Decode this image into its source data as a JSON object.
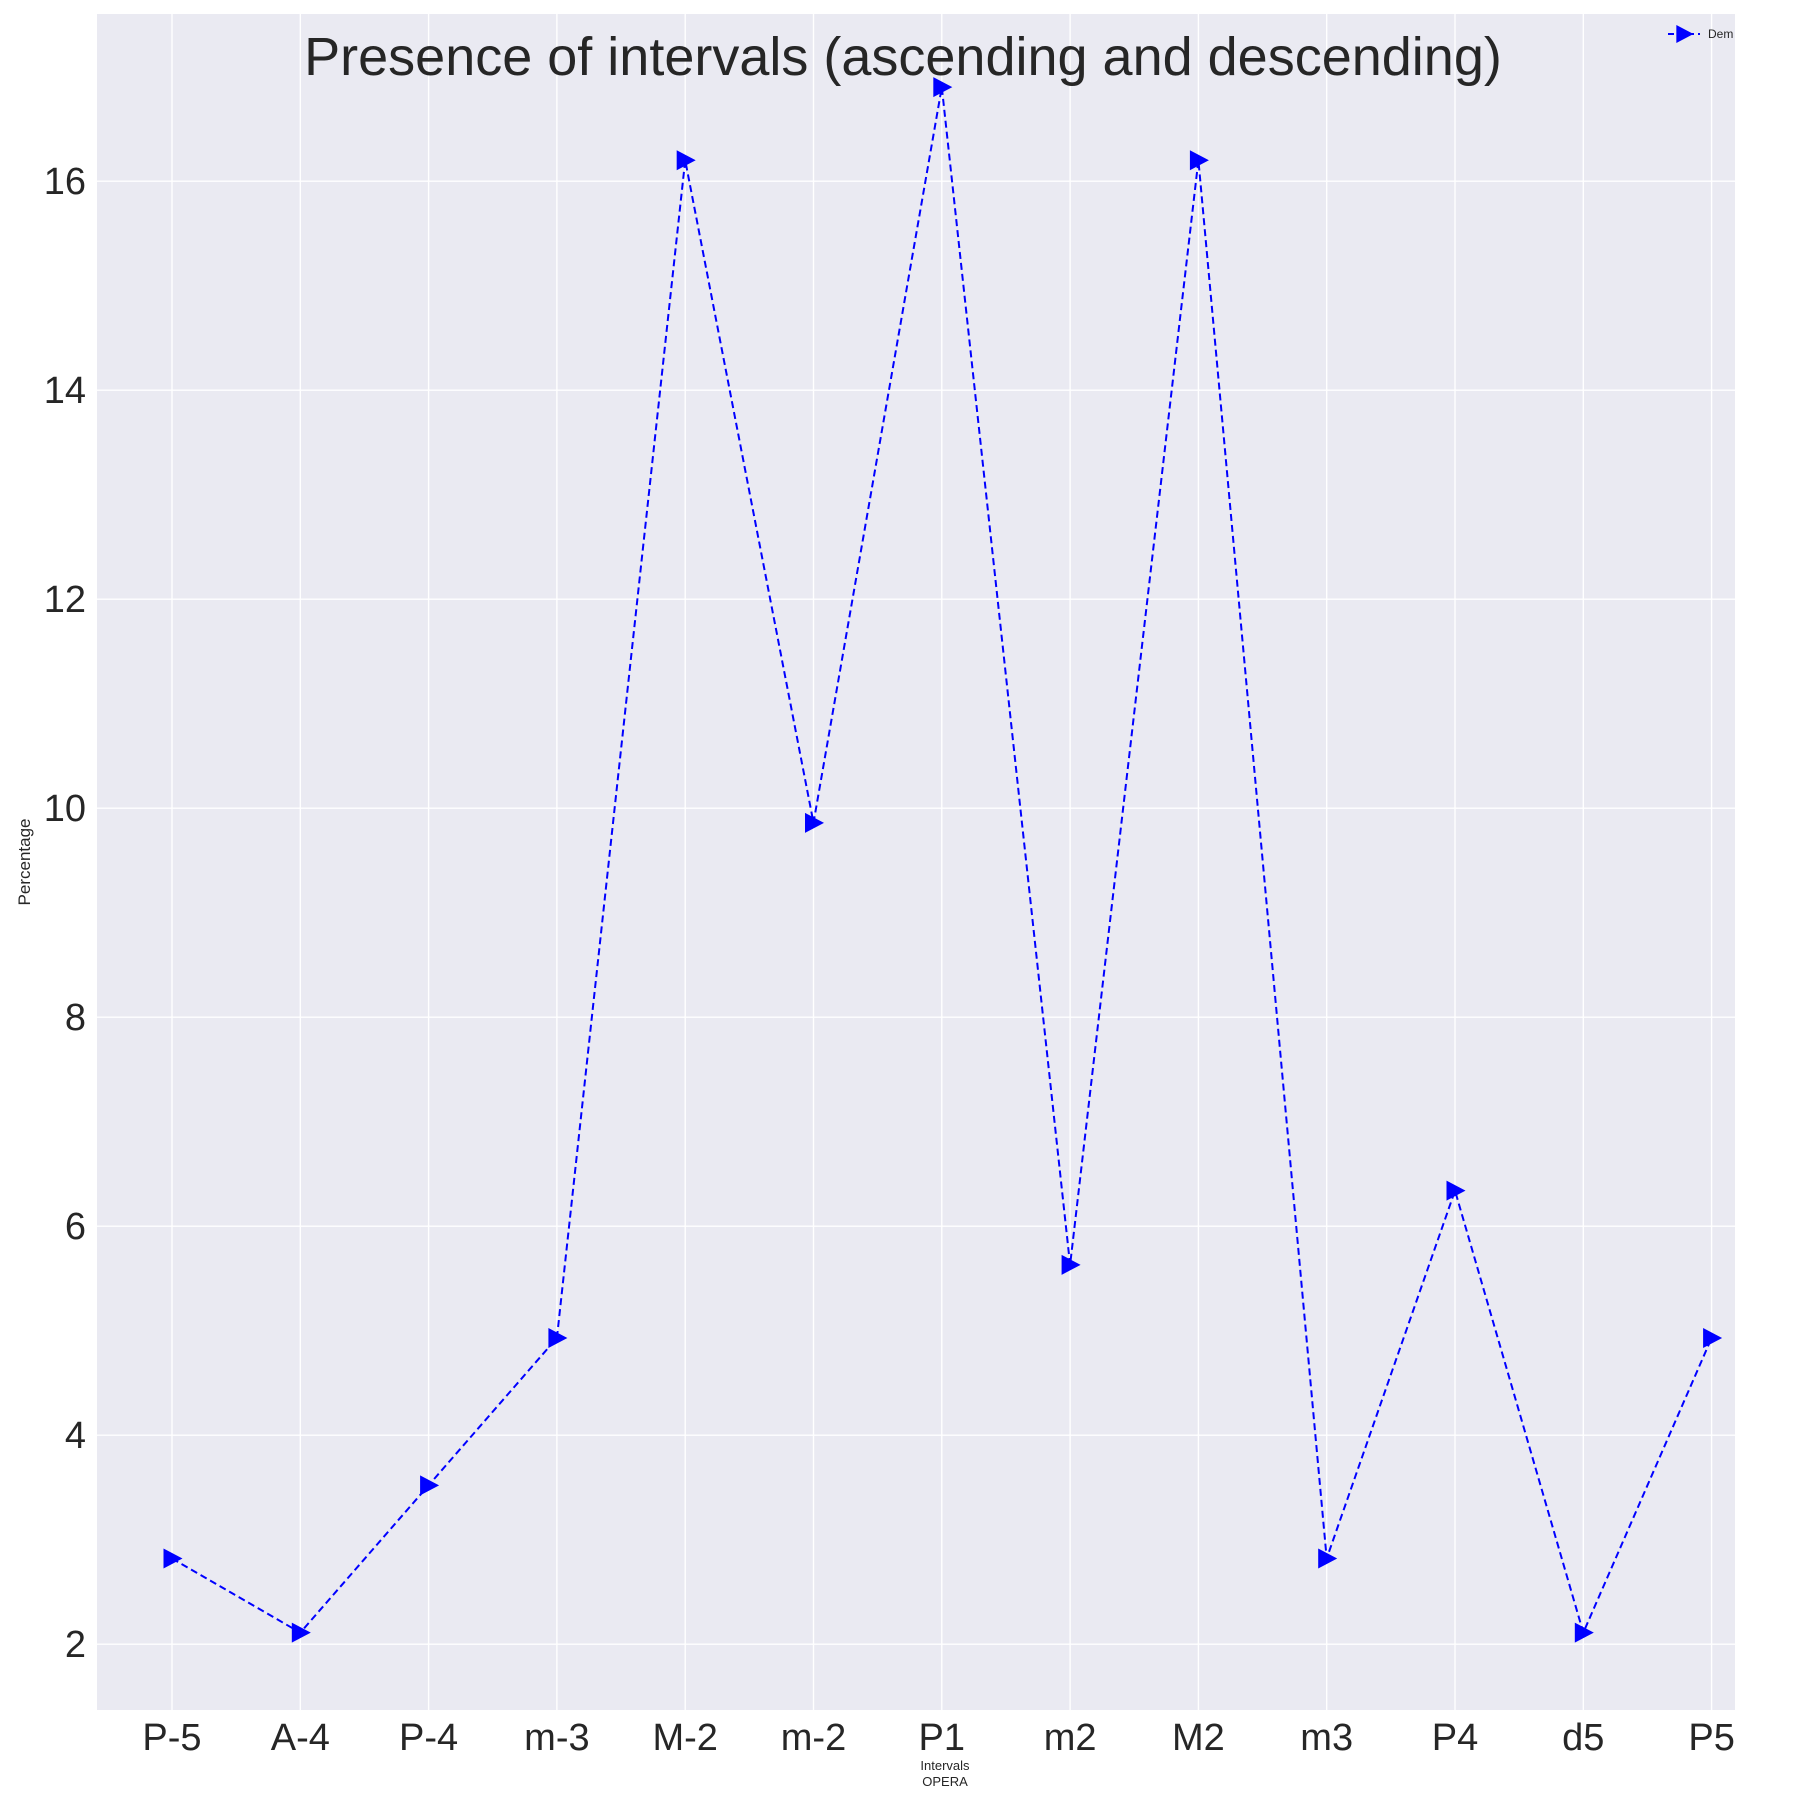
{
  "chart_data": {
    "type": "line",
    "title": "Presence of intervals (ascending and descending)",
    "xlabel": "Intervals",
    "xlabel_sub": "OPERA",
    "ylabel": "Percentage",
    "categories": [
      "P-5",
      "A-4",
      "P-4",
      "m-3",
      "M-2",
      "m-2",
      "P1",
      "m2",
      "M2",
      "m3",
      "P4",
      "d5",
      "P5"
    ],
    "series": [
      {
        "name": "Dem",
        "values": [
          2.82,
          2.11,
          3.52,
          4.93,
          16.2,
          9.86,
          16.9,
          5.63,
          16.2,
          2.82,
          6.34,
          2.11,
          4.93
        ],
        "color": "#0000ff",
        "line_style": "dashed",
        "marker": "triangle-right"
      }
    ],
    "yticks": [
      2,
      4,
      6,
      8,
      10,
      12,
      14,
      16
    ],
    "ylim": [
      1.37,
      17.6
    ],
    "grid": true,
    "legend_position": "top-right",
    "background_color": "#eaeaf2",
    "grid_color": "#ffffff"
  }
}
